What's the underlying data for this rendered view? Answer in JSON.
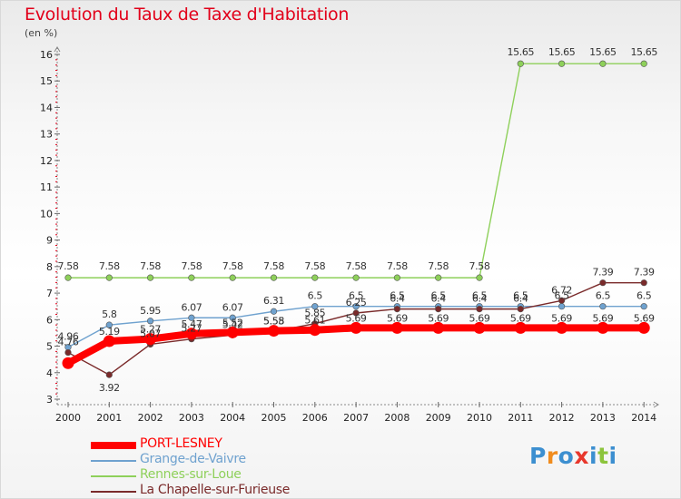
{
  "header": {
    "title": "Evolution du Taux de Taxe d'Habitation",
    "unit": "(en %)"
  },
  "chart_data": {
    "type": "line",
    "title": "Evolution du Taux de Taxe d'Habitation",
    "ylabel": "(en %)",
    "xlabel": "",
    "ylim": [
      3,
      16
    ],
    "yticks": [
      3,
      4,
      5,
      6,
      7,
      8,
      9,
      10,
      11,
      12,
      13,
      14,
      15,
      16
    ],
    "categories": [
      "2000",
      "2001",
      "2002",
      "2003",
      "2004",
      "2005",
      "2006",
      "2007",
      "2008",
      "2009",
      "2010",
      "2011",
      "2012",
      "2013",
      "2014"
    ],
    "grid": false,
    "legend_position": "bottom-left",
    "series": [
      {
        "name": "PORT-LESNEY",
        "color": "#ff0000",
        "values": [
          4.36,
          5.19,
          5.27,
          5.47,
          5.52,
          5.58,
          5.61,
          5.69,
          5.69,
          5.69,
          5.69,
          5.69,
          5.69,
          5.69,
          5.69
        ],
        "labels": [
          "",
          "5.19",
          "5.27",
          "5.47",
          "5.52",
          "5.58",
          "5.61",
          "5.69",
          "5.69",
          "5.69",
          "5.69",
          "5.69",
          "5.69",
          "5.69",
          "5.69"
        ]
      },
      {
        "name": "Grange-de-Vaivre",
        "color": "#6fa2cf",
        "values": [
          4.96,
          5.8,
          5.95,
          6.07,
          6.07,
          6.31,
          6.5,
          6.5,
          6.5,
          6.5,
          6.5,
          6.5,
          6.5,
          6.5,
          6.5
        ],
        "labels": [
          "4.96",
          "5.8",
          "5.95",
          "6.07",
          "6.07",
          "6.31",
          "6.5",
          "6.5",
          "6.5",
          "6.5",
          "6.5",
          "6.5",
          "6.5",
          "6.5",
          "6.5"
        ]
      },
      {
        "name": "Rennes-sur-Loue",
        "color": "#8ed05a",
        "values": [
          7.58,
          7.58,
          7.58,
          7.58,
          7.58,
          7.58,
          7.58,
          7.58,
          7.58,
          7.58,
          7.58,
          15.65,
          15.65,
          15.65,
          15.65
        ],
        "labels": [
          "7.58",
          "7.58",
          "7.58",
          "7.58",
          "7.58",
          "7.58",
          "7.58",
          "7.58",
          "7.58",
          "7.58",
          "7.58",
          "15.65",
          "15.65",
          "15.65",
          "15.65"
        ]
      },
      {
        "name": "La Chapelle-sur-Furieuse",
        "color": "#7a2a2a",
        "values": [
          4.76,
          3.92,
          5.07,
          5.27,
          5.42,
          5.55,
          5.85,
          6.25,
          6.4,
          6.4,
          6.4,
          6.4,
          6.72,
          7.39,
          7.39
        ],
        "labels": [
          "4.76",
          "3.92",
          "5.07",
          "5.27",
          "5.42",
          "5.55",
          "5.85",
          "6.25",
          "6.4",
          "6.4",
          "6.4",
          "6.4",
          "6.72",
          "7.39",
          "7.39"
        ]
      }
    ]
  },
  "logo": {
    "letters": [
      "P",
      "r",
      "o",
      "x",
      "i",
      "t",
      "i"
    ],
    "colors": [
      "#3c8fd0",
      "#f08c1e",
      "#3c8fd0",
      "#e8372c",
      "#3c8fd0",
      "#8cc43c",
      "#3c8fd0"
    ]
  }
}
